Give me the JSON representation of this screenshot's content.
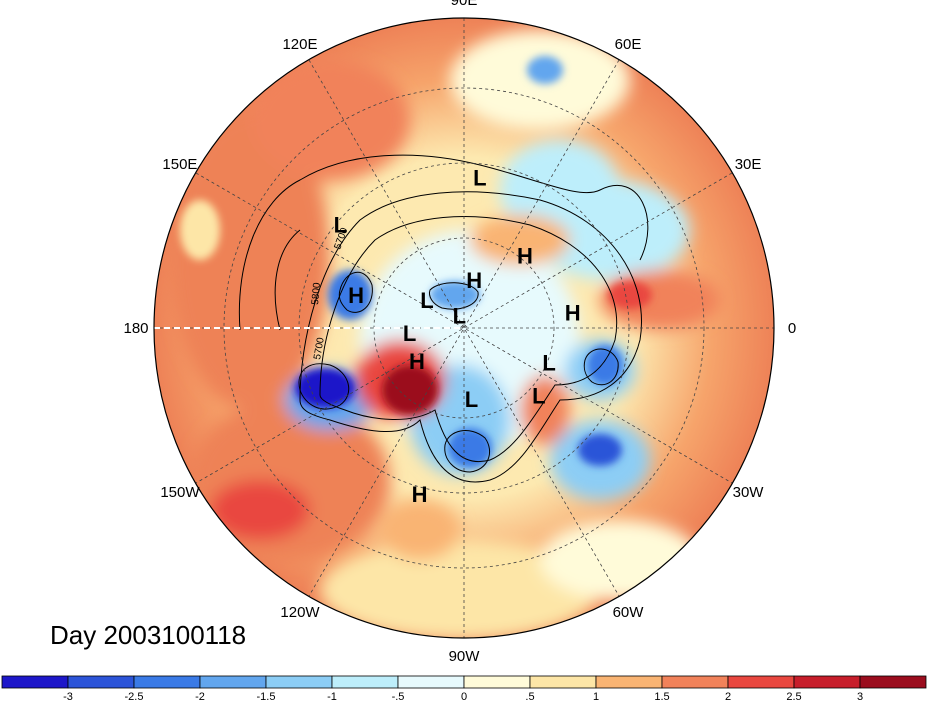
{
  "map": {
    "projection": "polar-stereographic-north",
    "lon_labels": [
      {
        "text": "90E",
        "angle": 90
      },
      {
        "text": "60E",
        "angle": 60
      },
      {
        "text": "30E",
        "angle": 30
      },
      {
        "text": "0",
        "angle": 0
      },
      {
        "text": "30W",
        "angle": -30
      },
      {
        "text": "60W",
        "angle": -60
      },
      {
        "text": "90W",
        "angle": -90
      },
      {
        "text": "120W",
        "angle": -120
      },
      {
        "text": "150W",
        "angle": -150
      },
      {
        "text": "180",
        "angle": 180
      },
      {
        "text": "150E",
        "angle": 150
      },
      {
        "text": "120E",
        "angle": 120
      }
    ],
    "pressure_centers": [
      {
        "type": "L",
        "lon": 84,
        "lat": 38
      },
      {
        "type": "H",
        "lon": 50,
        "lat": 56
      },
      {
        "type": "L",
        "lon": 140,
        "lat": 35
      },
      {
        "type": "H",
        "lon": 163,
        "lat": 50
      },
      {
        "type": "H",
        "lon": 78,
        "lat": 72
      },
      {
        "type": "L",
        "lon": 143,
        "lat": 73
      },
      {
        "type": "L",
        "lon": 110,
        "lat": 85
      },
      {
        "type": "H",
        "lon": 8,
        "lat": 51
      },
      {
        "type": "L",
        "lon": -175,
        "lat": 70
      },
      {
        "type": "H",
        "lon": -145,
        "lat": 69
      },
      {
        "type": "L",
        "lon": -84,
        "lat": 64
      },
      {
        "type": "L",
        "lon": -22,
        "lat": 57
      },
      {
        "type": "L",
        "lon": -42,
        "lat": 54
      },
      {
        "type": "H",
        "lon": -105,
        "lat": 32
      }
    ],
    "contour_labels": [
      "5700",
      "5800",
      "5700"
    ]
  },
  "title": "Day 2003100118",
  "colorbar": {
    "colors": [
      "#1d17c9",
      "#2c54d8",
      "#3a7ae6",
      "#62a6ee",
      "#8ccdf5",
      "#bdeefb",
      "#e7fafd",
      "#fffbd9",
      "#fde6a7",
      "#f9b473",
      "#f1825a",
      "#e9473f",
      "#c71e2b",
      "#9b0d1e"
    ],
    "ticks": [
      "-3",
      "-2.5",
      "-2",
      "-1.5",
      "-1",
      "-.5",
      "0",
      ".5",
      "1",
      "1.5",
      "2",
      "2.5",
      "3"
    ]
  }
}
